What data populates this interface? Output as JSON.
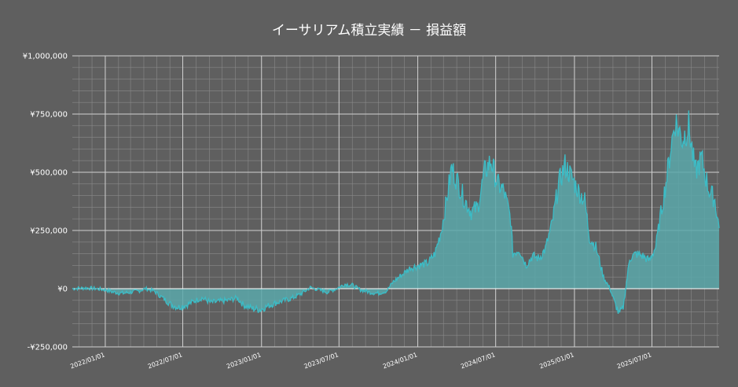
{
  "chart_data": {
    "type": "area",
    "title": "イーサリアム積立実績 － 損益額",
    "xlabel": "",
    "ylabel": "",
    "x_range": [
      "2021-10-16",
      "2025-12-05"
    ],
    "ylim": [
      -250000,
      1000000
    ],
    "y_ticks": [
      -250000,
      0,
      250000,
      500000,
      750000,
      1000000
    ],
    "y_tick_labels": [
      "-¥250,000",
      "¥0",
      "¥250,000",
      "¥500,000",
      "¥750,000",
      "¥1,000,000"
    ],
    "x_ticks": [
      "2022-01-01",
      "2022-07-01",
      "2023-01-01",
      "2023-07-01",
      "2024-01-01",
      "2024-07-01",
      "2025-01-01",
      "2025-07-01"
    ],
    "x_tick_labels": [
      "2022/01/01",
      "2022/07/01",
      "2023/01/01",
      "2023/07/01",
      "2024/01/01",
      "2024/07/01",
      "2025/01/01",
      "2025/07/01"
    ],
    "grid": true,
    "series": [
      {
        "name": "",
        "color": "#3cbcc6",
        "fill": "#5aa8aa",
        "points": [
          [
            "2021-10-16",
            0
          ],
          [
            "2021-11-01",
            2000
          ],
          [
            "2021-11-20",
            3000
          ],
          [
            "2021-12-10",
            0
          ],
          [
            "2022-01-01",
            -5000
          ],
          [
            "2022-01-20",
            -15000
          ],
          [
            "2022-02-10",
            -20000
          ],
          [
            "2022-03-01",
            -15000
          ],
          [
            "2022-03-20",
            -10000
          ],
          [
            "2022-04-05",
            0
          ],
          [
            "2022-04-25",
            -10000
          ],
          [
            "2022-05-15",
            -40000
          ],
          [
            "2022-06-05",
            -70000
          ],
          [
            "2022-06-20",
            -80000
          ],
          [
            "2022-07-10",
            -70000
          ],
          [
            "2022-08-01",
            -50000
          ],
          [
            "2022-08-15",
            -40000
          ],
          [
            "2022-09-05",
            -60000
          ],
          [
            "2022-09-25",
            -55000
          ],
          [
            "2022-10-15",
            -50000
          ],
          [
            "2022-11-05",
            -40000
          ],
          [
            "2022-11-20",
            -70000
          ],
          [
            "2022-12-10",
            -85000
          ],
          [
            "2022-12-30",
            -90000
          ],
          [
            "2023-01-15",
            -75000
          ],
          [
            "2023-02-05",
            -60000
          ],
          [
            "2023-02-25",
            -50000
          ],
          [
            "2023-03-15",
            -40000
          ],
          [
            "2023-04-05",
            -20000
          ],
          [
            "2023-04-25",
            5000
          ],
          [
            "2023-05-15",
            -5000
          ],
          [
            "2023-06-05",
            -15000
          ],
          [
            "2023-06-25",
            0
          ],
          [
            "2023-07-15",
            20000
          ],
          [
            "2023-08-01",
            15000
          ],
          [
            "2023-08-20",
            -5000
          ],
          [
            "2023-09-10",
            -15000
          ],
          [
            "2023-09-30",
            -20000
          ],
          [
            "2023-10-20",
            -10000
          ],
          [
            "2023-11-05",
            30000
          ],
          [
            "2023-11-25",
            60000
          ],
          [
            "2023-12-15",
            90000
          ],
          [
            "2024-01-05",
            100000
          ],
          [
            "2024-01-25",
            110000
          ],
          [
            "2024-02-10",
            150000
          ],
          [
            "2024-02-25",
            250000
          ],
          [
            "2024-03-10",
            400000
          ],
          [
            "2024-03-20",
            520000
          ],
          [
            "2024-04-05",
            450000
          ],
          [
            "2024-04-20",
            380000
          ],
          [
            "2024-05-05",
            330000
          ],
          [
            "2024-05-20",
            350000
          ],
          [
            "2024-06-05",
            500000
          ],
          [
            "2024-06-20",
            550000
          ],
          [
            "2024-07-05",
            450000
          ],
          [
            "2024-07-20",
            420000
          ],
          [
            "2024-08-05",
            300000
          ],
          [
            "2024-08-10",
            150000
          ],
          [
            "2024-08-25",
            170000
          ],
          [
            "2024-09-10",
            100000
          ],
          [
            "2024-09-25",
            140000
          ],
          [
            "2024-10-10",
            130000
          ],
          [
            "2024-10-25",
            170000
          ],
          [
            "2024-11-10",
            280000
          ],
          [
            "2024-11-25",
            450000
          ],
          [
            "2024-12-10",
            530000
          ],
          [
            "2024-12-25",
            480000
          ],
          [
            "2025-01-10",
            420000
          ],
          [
            "2025-01-25",
            380000
          ],
          [
            "2025-02-05",
            220000
          ],
          [
            "2025-02-20",
            180000
          ],
          [
            "2025-03-10",
            50000
          ],
          [
            "2025-03-25",
            0
          ],
          [
            "2025-04-05",
            -60000
          ],
          [
            "2025-04-15",
            -110000
          ],
          [
            "2025-04-25",
            -80000
          ],
          [
            "2025-05-10",
            130000
          ],
          [
            "2025-05-25",
            150000
          ],
          [
            "2025-06-10",
            140000
          ],
          [
            "2025-06-25",
            120000
          ],
          [
            "2025-07-10",
            180000
          ],
          [
            "2025-07-20",
            300000
          ],
          [
            "2025-08-05",
            480000
          ],
          [
            "2025-08-15",
            620000
          ],
          [
            "2025-08-25",
            720000
          ],
          [
            "2025-09-10",
            640000
          ],
          [
            "2025-09-25",
            700000
          ],
          [
            "2025-10-10",
            500000
          ],
          [
            "2025-10-25",
            560000
          ],
          [
            "2025-11-10",
            430000
          ],
          [
            "2025-11-25",
            380000
          ],
          [
            "2025-12-05",
            260000
          ]
        ]
      }
    ]
  }
}
